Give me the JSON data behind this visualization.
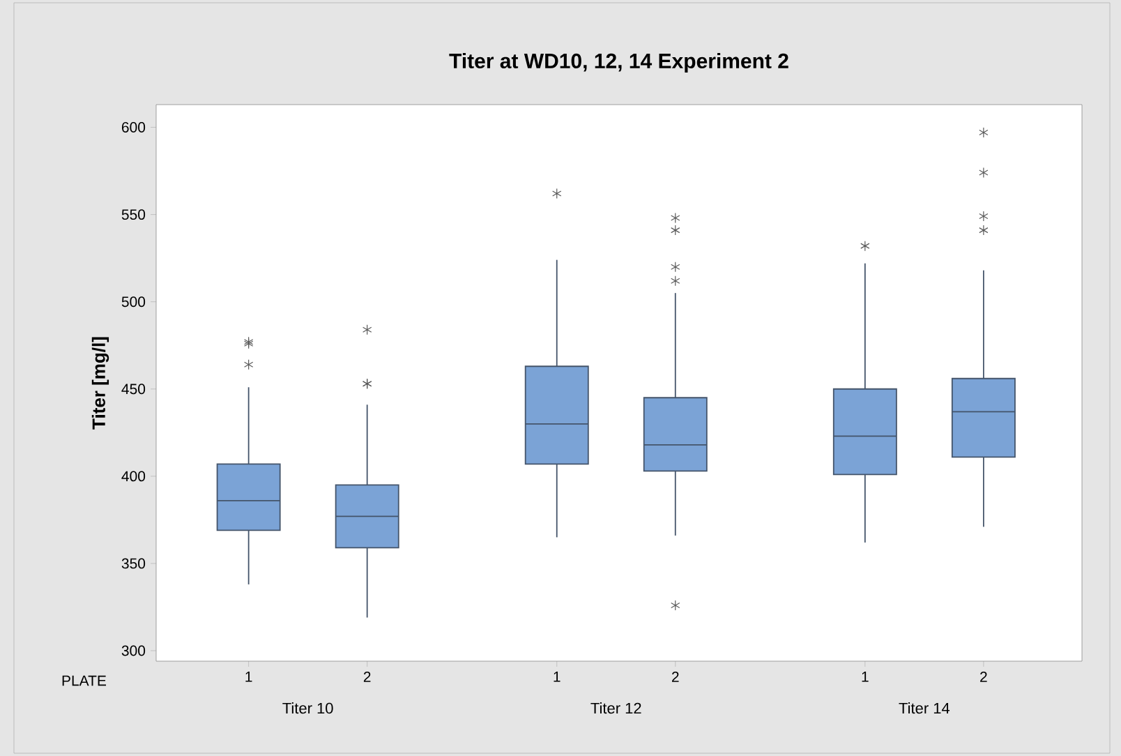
{
  "chart_data": {
    "type": "box",
    "title": "Titer at WD10, 12, 14 Experiment 2",
    "ylabel": "Titer [mg/l]",
    "xlabel": "PLATE",
    "categories": [
      "1",
      "2",
      "1",
      "2",
      "1",
      "2"
    ],
    "annotations": [
      "Titer 10",
      "Titer 12",
      "Titer 14"
    ],
    "color": "#7ba3d6",
    "boxes": [
      {
        "low": 338,
        "q1": 369,
        "median": 386,
        "q3": 407,
        "high": 451,
        "outliers": [
          477,
          476,
          464
        ]
      },
      {
        "low": 319,
        "q1": 359,
        "median": 377,
        "q3": 395,
        "high": 441,
        "outliers": [
          484,
          453,
          453
        ]
      },
      {
        "low": 365,
        "q1": 407,
        "median": 430,
        "q3": 463,
        "high": 524,
        "outliers": [
          562
        ]
      },
      {
        "low": 366,
        "q1": 403,
        "median": 418,
        "q3": 445,
        "high": 505,
        "outliers": [
          548,
          541,
          520,
          512,
          326
        ]
      },
      {
        "low": 362,
        "q1": 401,
        "median": 423,
        "q3": 450,
        "high": 522,
        "outliers": [
          532
        ]
      },
      {
        "low": 371,
        "q1": 411,
        "median": 437,
        "q3": 456,
        "high": 518,
        "outliers": [
          597,
          574,
          549,
          541
        ]
      }
    ],
    "ylim": [
      294,
      613
    ],
    "yticks": [
      300,
      350,
      400,
      450,
      500,
      550,
      600
    ],
    "grid": false,
    "marker": "star"
  }
}
